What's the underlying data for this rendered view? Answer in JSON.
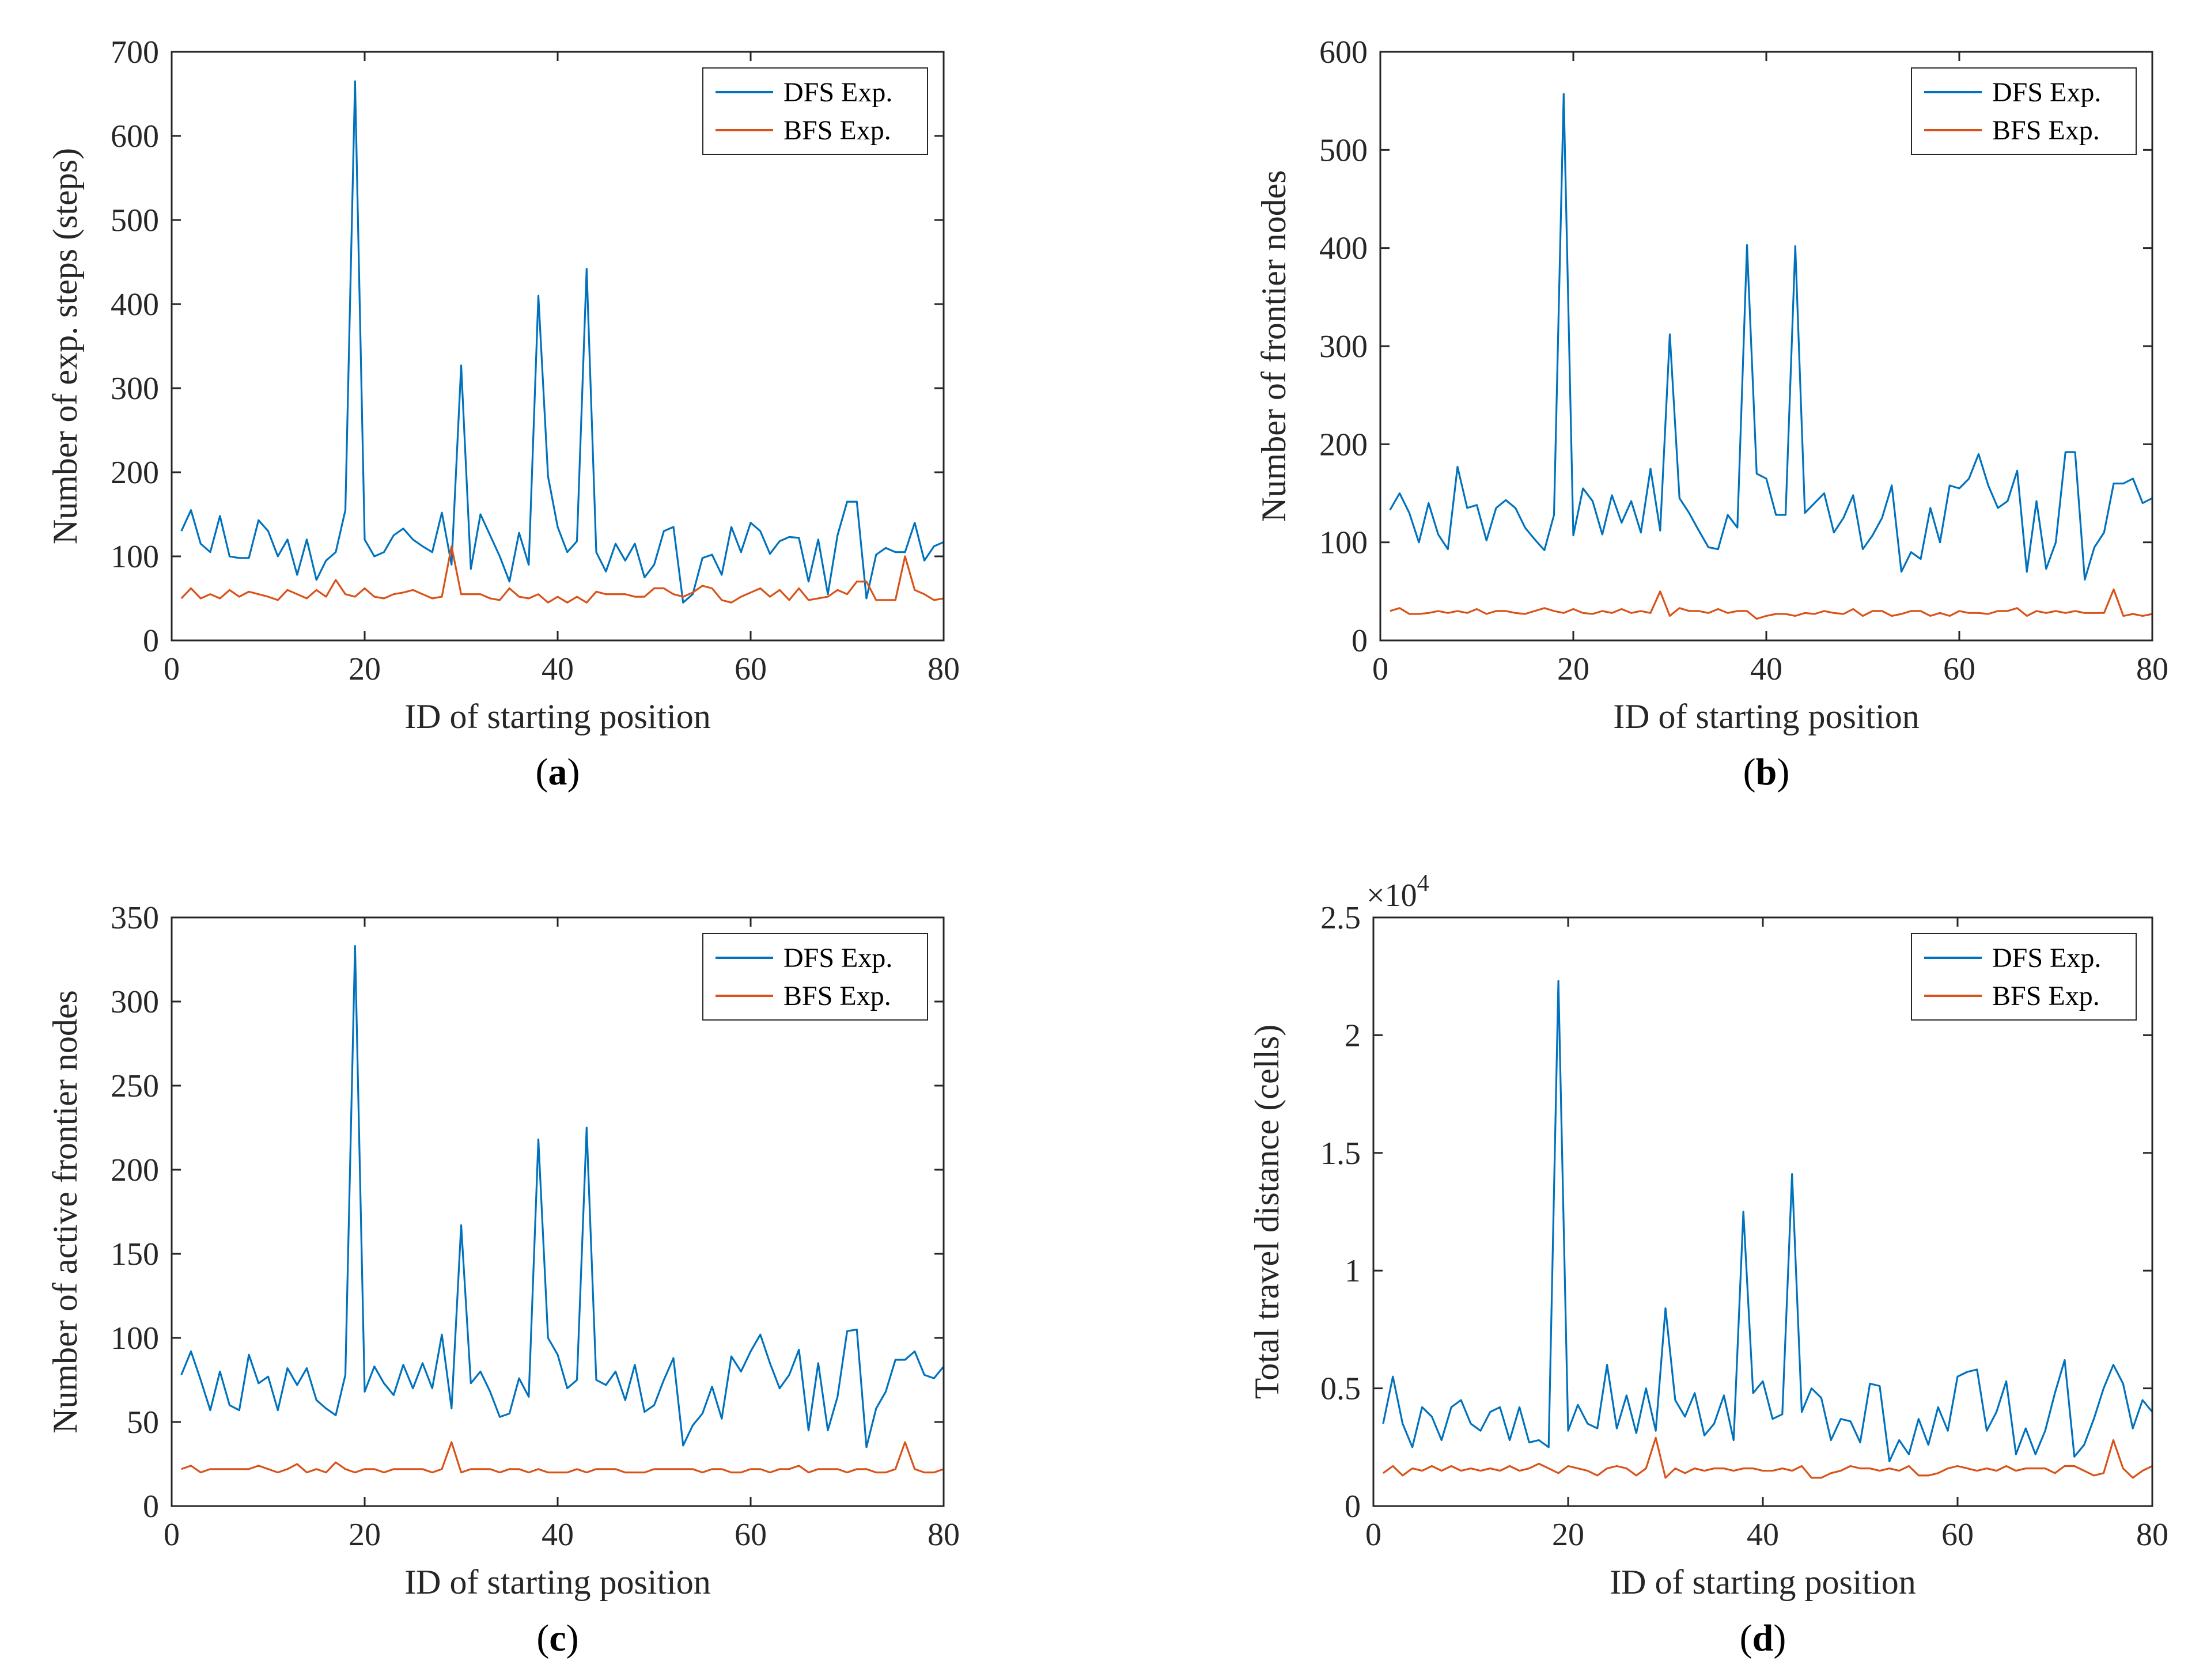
{
  "figure": {
    "colors": {
      "dfs": "#0072BD",
      "bfs": "#D95319",
      "axis": "#262626"
    }
  },
  "chart_data": [
    {
      "type": "line",
      "panel_label": "a",
      "xlabel": "ID of starting position",
      "ylabel": "Number of exp. steps (steps)",
      "xlim": [
        0,
        80
      ],
      "ylim": [
        0,
        700
      ],
      "xticks": [
        "0",
        "20",
        "40",
        "60",
        "80"
      ],
      "yticks": [
        "0",
        "100",
        "200",
        "300",
        "400",
        "500",
        "600",
        "700"
      ],
      "exponent_label": "",
      "legend": "top-right",
      "series": [
        {
          "name": "DFS Exp.",
          "color": "#0072BD",
          "values": [
            130,
            155,
            115,
            105,
            148,
            100,
            98,
            98,
            143,
            130,
            100,
            120,
            78,
            120,
            72,
            95,
            105,
            155,
            665,
            120,
            100,
            105,
            125,
            133,
            120,
            112,
            105,
            152,
            90,
            327,
            85,
            150,
            125,
            100,
            70,
            128,
            90,
            410,
            195,
            135,
            105,
            118,
            442,
            105,
            82,
            115,
            95,
            115,
            75,
            90,
            130,
            135,
            45,
            55,
            98,
            102,
            78,
            135,
            105,
            140,
            130,
            103,
            118,
            123,
            122,
            70,
            120,
            55,
            125,
            165,
            165,
            50,
            102,
            110,
            105,
            105,
            140,
            95,
            112,
            117
          ]
        },
        {
          "name": "BFS Exp.",
          "color": "#D95319",
          "values": [
            50,
            62,
            50,
            55,
            50,
            60,
            52,
            58,
            55,
            52,
            48,
            60,
            55,
            50,
            60,
            52,
            72,
            55,
            52,
            62,
            52,
            50,
            55,
            57,
            60,
            55,
            50,
            52,
            112,
            55,
            55,
            55,
            50,
            48,
            62,
            52,
            50,
            55,
            45,
            52,
            45,
            52,
            45,
            58,
            55,
            55,
            55,
            52,
            52,
            62,
            62,
            55,
            52,
            57,
            65,
            62,
            48,
            45,
            52,
            57,
            62,
            52,
            60,
            48,
            62,
            48,
            50,
            52,
            60,
            55,
            70,
            70,
            48,
            48,
            48,
            100,
            60,
            55,
            48,
            50
          ]
        }
      ]
    },
    {
      "type": "line",
      "panel_label": "b",
      "xlabel": "ID of starting position",
      "ylabel": "Number of frontier nodes",
      "xlim": [
        0,
        80
      ],
      "ylim": [
        0,
        600
      ],
      "xticks": [
        "0",
        "20",
        "40",
        "60",
        "80"
      ],
      "yticks": [
        "0",
        "100",
        "200",
        "300",
        "400",
        "500",
        "600"
      ],
      "exponent_label": "",
      "legend": "top-right",
      "series": [
        {
          "name": "DFS Exp.",
          "color": "#0072BD",
          "values": [
            133,
            150,
            130,
            100,
            140,
            108,
            93,
            177,
            135,
            138,
            102,
            135,
            143,
            135,
            115,
            103,
            92,
            128,
            557,
            107,
            155,
            142,
            108,
            148,
            120,
            142,
            110,
            175,
            112,
            312,
            145,
            130,
            112,
            95,
            93,
            128,
            115,
            403,
            170,
            165,
            128,
            128,
            402,
            130,
            140,
            150,
            110,
            125,
            148,
            93,
            107,
            125,
            158,
            70,
            90,
            83,
            135,
            100,
            158,
            155,
            165,
            190,
            158,
            135,
            142,
            173,
            70,
            142,
            73,
            100,
            192,
            192,
            62,
            95,
            110,
            160,
            160,
            165,
            140,
            145
          ]
        },
        {
          "name": "BFS Exp.",
          "color": "#D95319",
          "values": [
            30,
            33,
            27,
            27,
            28,
            30,
            28,
            30,
            28,
            32,
            27,
            30,
            30,
            28,
            27,
            30,
            33,
            30,
            28,
            32,
            28,
            27,
            30,
            28,
            32,
            28,
            30,
            28,
            50,
            25,
            33,
            30,
            30,
            28,
            32,
            28,
            30,
            30,
            22,
            25,
            27,
            27,
            25,
            28,
            27,
            30,
            28,
            27,
            32,
            25,
            30,
            30,
            25,
            27,
            30,
            30,
            25,
            28,
            25,
            30,
            28,
            28,
            27,
            30,
            30,
            33,
            25,
            30,
            28,
            30,
            28,
            30,
            28,
            28,
            28,
            52,
            25,
            27,
            25,
            27
          ]
        }
      ]
    },
    {
      "type": "line",
      "panel_label": "c",
      "xlabel": "ID of starting position",
      "ylabel": "Number of active frontier nodes",
      "xlim": [
        0,
        80
      ],
      "ylim": [
        0,
        350
      ],
      "xticks": [
        "0",
        "20",
        "40",
        "60",
        "80"
      ],
      "yticks": [
        "0",
        "50",
        "100",
        "150",
        "200",
        "250",
        "300",
        "350"
      ],
      "exponent_label": "",
      "legend": "top-right",
      "series": [
        {
          "name": "DFS Exp.",
          "color": "#0072BD",
          "values": [
            78,
            92,
            75,
            57,
            80,
            60,
            57,
            90,
            73,
            77,
            57,
            82,
            72,
            82,
            63,
            58,
            54,
            78,
            333,
            68,
            83,
            73,
            66,
            84,
            70,
            85,
            70,
            102,
            58,
            167,
            73,
            80,
            68,
            53,
            55,
            76,
            65,
            218,
            100,
            90,
            70,
            75,
            225,
            75,
            72,
            80,
            63,
            84,
            56,
            60,
            75,
            88,
            36,
            48,
            55,
            71,
            52,
            89,
            80,
            92,
            102,
            85,
            70,
            78,
            93,
            45,
            85,
            45,
            65,
            104,
            105,
            35,
            58,
            68,
            87,
            87,
            92,
            78,
            76,
            83
          ]
        },
        {
          "name": "BFS Exp.",
          "color": "#D95319",
          "values": [
            22,
            24,
            20,
            22,
            22,
            22,
            22,
            22,
            24,
            22,
            20,
            22,
            25,
            20,
            22,
            20,
            26,
            22,
            20,
            22,
            22,
            20,
            22,
            22,
            22,
            22,
            20,
            22,
            38,
            20,
            22,
            22,
            22,
            20,
            22,
            22,
            20,
            22,
            20,
            20,
            20,
            22,
            20,
            22,
            22,
            22,
            20,
            20,
            20,
            22,
            22,
            22,
            22,
            22,
            20,
            22,
            22,
            20,
            20,
            22,
            22,
            20,
            22,
            22,
            24,
            20,
            22,
            22,
            22,
            20,
            22,
            22,
            20,
            20,
            22,
            38,
            22,
            20,
            20,
            22
          ]
        }
      ]
    },
    {
      "type": "line",
      "panel_label": "d",
      "xlabel": "ID of starting position",
      "ylabel": "Total travel distance (cells)",
      "xlim": [
        0,
        80
      ],
      "ylim": [
        0,
        25000
      ],
      "xticks": [
        "0",
        "20",
        "40",
        "60",
        "80"
      ],
      "yticks": [
        "0",
        "0.5",
        "1",
        "1.5",
        "2",
        "2.5"
      ],
      "exponent_label": "×10",
      "exponent_power": "4",
      "legend": "top-right",
      "series": [
        {
          "name": "DFS Exp.",
          "color": "#0072BD",
          "values": [
            3500,
            5500,
            3500,
            2500,
            4200,
            3800,
            2800,
            4200,
            4500,
            3500,
            3200,
            4000,
            4200,
            2800,
            4200,
            2700,
            2800,
            2500,
            22300,
            3200,
            4300,
            3500,
            3300,
            6000,
            3300,
            4700,
            3100,
            5000,
            3200,
            8400,
            4500,
            3800,
            4800,
            3000,
            3500,
            4700,
            2800,
            12500,
            4800,
            5300,
            3700,
            3900,
            14100,
            4000,
            5000,
            4600,
            2800,
            3700,
            3600,
            2700,
            5200,
            5100,
            1900,
            2800,
            2200,
            3700,
            2600,
            4200,
            3200,
            5500,
            5700,
            5800,
            3200,
            4000,
            5300,
            2200,
            3300,
            2200,
            3200,
            4800,
            6200,
            2100,
            2600,
            3700,
            5000,
            6000,
            5200,
            3300,
            4500,
            4000
          ]
        },
        {
          "name": "BFS Exp.",
          "color": "#D95319",
          "values": [
            1400,
            1700,
            1300,
            1600,
            1500,
            1700,
            1500,
            1700,
            1500,
            1600,
            1500,
            1600,
            1500,
            1700,
            1500,
            1600,
            1800,
            1600,
            1400,
            1700,
            1600,
            1500,
            1300,
            1600,
            1700,
            1600,
            1300,
            1600,
            2900,
            1200,
            1600,
            1400,
            1600,
            1500,
            1600,
            1600,
            1500,
            1600,
            1600,
            1500,
            1500,
            1600,
            1500,
            1700,
            1200,
            1200,
            1400,
            1500,
            1700,
            1600,
            1600,
            1500,
            1600,
            1500,
            1700,
            1300,
            1300,
            1400,
            1600,
            1700,
            1600,
            1500,
            1600,
            1500,
            1700,
            1500,
            1600,
            1600,
            1600,
            1400,
            1700,
            1700,
            1500,
            1300,
            1400,
            2800,
            1600,
            1200,
            1500,
            1700
          ]
        }
      ]
    }
  ]
}
